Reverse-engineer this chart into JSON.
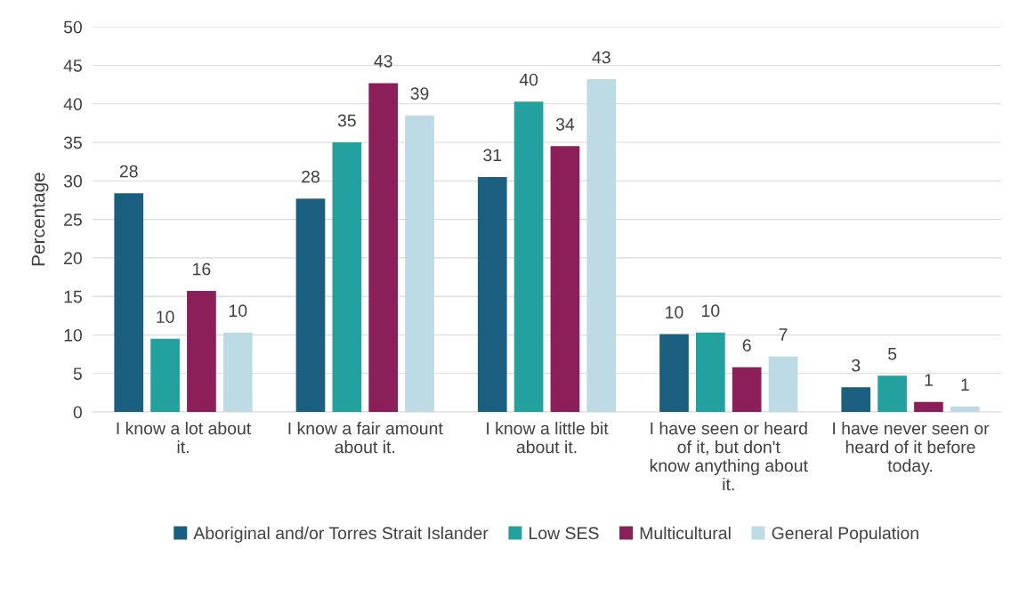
{
  "chart_data": {
    "type": "bar",
    "ylabel": "Percentage",
    "categories": [
      "I know a lot about it.",
      "I know a fair amount about it.",
      "I know a little bit about it.",
      "I have seen or heard of it, but don't know anything about it.",
      "I have never seen or heard of it before today."
    ],
    "series": [
      {
        "name": "Aboriginal and/or Torres Strait Islander",
        "color": "#1a5f80",
        "values": [
          28.4,
          27.7,
          30.5,
          10.1,
          3.2
        ],
        "value_labels": [
          "28",
          "28",
          "31",
          "10",
          "3"
        ]
      },
      {
        "name": "Low SES",
        "color": "#22a19e",
        "values": [
          9.5,
          35.0,
          40.3,
          10.3,
          4.7
        ],
        "value_labels": [
          "10",
          "35",
          "40",
          "10",
          "5"
        ]
      },
      {
        "name": "Multicultural",
        "color": "#8b1f5a",
        "values": [
          15.7,
          42.7,
          34.5,
          5.8,
          1.3
        ],
        "value_labels": [
          "16",
          "43",
          "34",
          "6",
          "1"
        ]
      },
      {
        "name": "General Population",
        "color": "#bcdbe4",
        "values": [
          10.3,
          38.5,
          43.2,
          7.2,
          0.7
        ],
        "value_labels": [
          "10",
          "39",
          "43",
          "7",
          "1"
        ]
      }
    ],
    "ylim": [
      0,
      50
    ],
    "yticks": [
      0,
      5,
      10,
      15,
      20,
      25,
      30,
      35,
      40,
      45,
      50
    ],
    "grid": "y",
    "legend": "bottom"
  }
}
